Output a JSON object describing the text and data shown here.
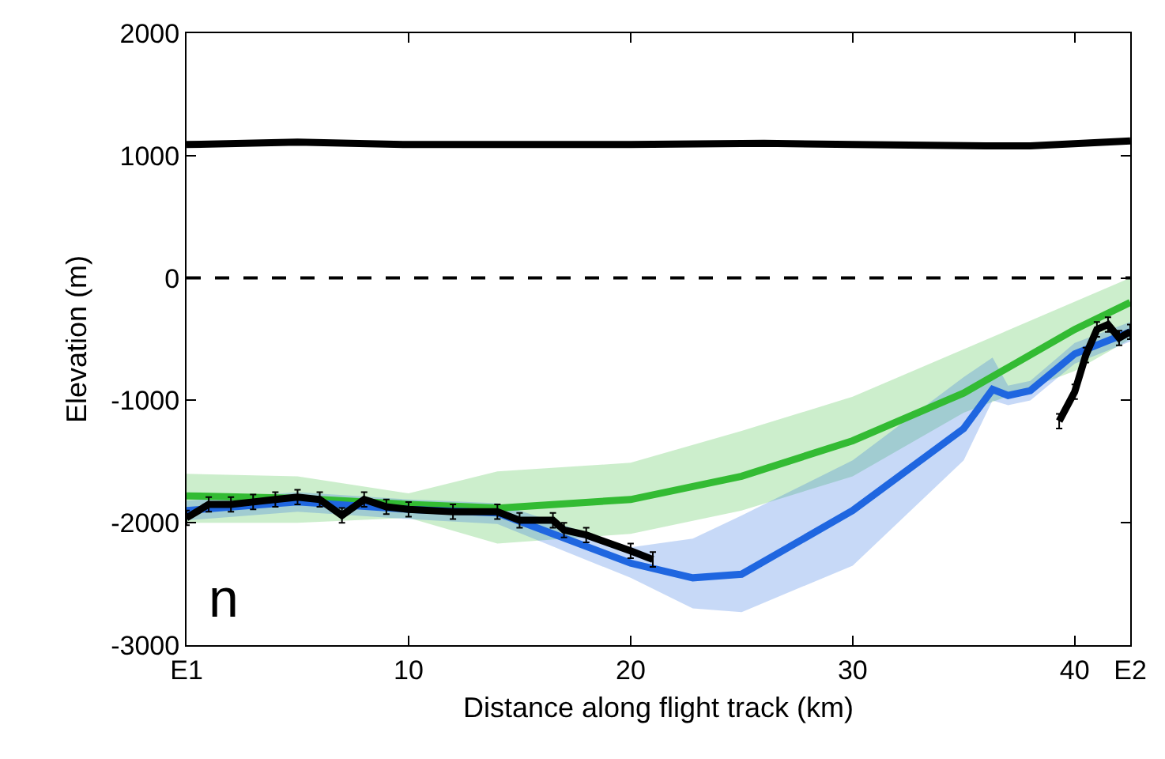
{
  "chart_data": {
    "type": "line",
    "xlabel": "Distance along flight track (km)",
    "ylabel": "Elevation (m)",
    "xlim": [
      0,
      42.5
    ],
    "xticks": [
      {
        "value": 0,
        "label": "E1"
      },
      10,
      20,
      30,
      40,
      {
        "value": 42.5,
        "label": "E2"
      }
    ],
    "ylim": [
      -3000,
      2000
    ],
    "yticks": [
      -3000,
      -2000,
      -1000,
      0,
      1000,
      2000
    ],
    "marker": "none",
    "line_style": "solid",
    "annotations": [
      "n"
    ],
    "ref_lines": [
      {
        "axis": "y",
        "value": 0,
        "color": "#000000",
        "line_style": "dashed"
      }
    ],
    "series": [
      {
        "color": "#33bb33",
        "x": [
          0,
          5,
          10,
          14,
          20,
          25,
          30,
          35,
          40,
          42.5
        ],
        "values": [
          -1780,
          -1800,
          -1850,
          -1880,
          -1810,
          -1620,
          -1330,
          -940,
          -420,
          -200
        ],
        "lower": [
          -2000,
          -2000,
          -1960,
          -2170,
          -2090,
          -1900,
          -1620,
          -1100,
          -760,
          -500
        ],
        "upper": [
          -1600,
          -1620,
          -1760,
          -1580,
          -1510,
          -1250,
          -970,
          -580,
          -200,
          0
        ]
      },
      {
        "color": "#1f66e0",
        "x": [
          0,
          5,
          10,
          14,
          20,
          22.8,
          25,
          30,
          35,
          36.3,
          37,
          38,
          40,
          42.5
        ],
        "values": [
          -1900,
          -1830,
          -1890,
          -1920,
          -2330,
          -2450,
          -2420,
          -1900,
          -1230,
          -910,
          -960,
          -920,
          -620,
          -440
        ],
        "lower": [
          -1980,
          -1910,
          -1970,
          -2010,
          -2450,
          -2700,
          -2730,
          -2350,
          -1490,
          -1000,
          -1040,
          -1000,
          -700,
          -520
        ],
        "upper": [
          -1820,
          -1750,
          -1810,
          -1840,
          -2200,
          -2130,
          -1940,
          -1490,
          -810,
          -650,
          -880,
          -840,
          -530,
          -360
        ]
      },
      {
        "color": "#000000",
        "x": [
          0,
          5,
          10,
          20,
          26,
          30,
          36,
          38,
          42.5
        ],
        "values": [
          1090,
          1110,
          1090,
          1090,
          1100,
          1090,
          1080,
          1080,
          1120
        ]
      },
      {
        "color": "#000000",
        "x": [
          0,
          1,
          2,
          3,
          4,
          5,
          6,
          7,
          8,
          9,
          10,
          12,
          14,
          15,
          16.5,
          17,
          18,
          20,
          21
        ],
        "values": [
          -1960,
          -1850,
          -1850,
          -1830,
          -1810,
          -1790,
          -1810,
          -1940,
          -1810,
          -1870,
          -1890,
          -1910,
          -1910,
          -1980,
          -1980,
          -2060,
          -2100,
          -2230,
          -2300
        ],
        "errors": [
          60,
          60,
          60,
          60,
          60,
          60,
          60,
          60,
          60,
          60,
          60,
          60,
          60,
          60,
          60,
          60,
          60,
          60,
          60
        ]
      },
      {
        "color": "#000000",
        "x": [
          39.3,
          40,
          40.5,
          41,
          41.5,
          42,
          42.5
        ],
        "values": [
          -1170,
          -930,
          -630,
          -420,
          -380,
          -490,
          -440
        ],
        "errors": [
          60,
          60,
          60,
          60,
          60,
          60,
          60
        ]
      }
    ]
  }
}
